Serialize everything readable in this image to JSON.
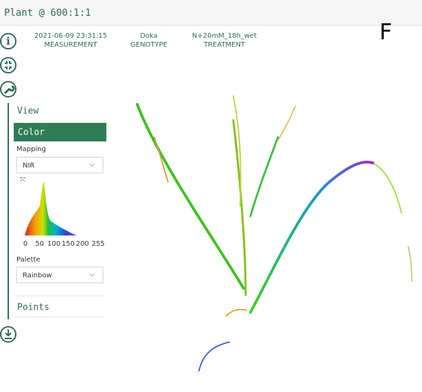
{
  "header": {
    "title": "Plant @ 600:1:1",
    "panel_letter": "F"
  },
  "metadata": [
    {
      "value": "2021-06-09 23:31:15",
      "label": "MEASUREMENT"
    },
    {
      "value": "Doka",
      "label": "GENOTYPE"
    },
    {
      "value": "N+20mM_18h_wet",
      "label": "TREATMENT"
    }
  ],
  "sidebar": {
    "view": "View",
    "color": "Color",
    "mapping_label": "Mapping",
    "mapping_value": "NIR",
    "histogram": {
      "xlim": [
        0,
        255
      ],
      "xticks": [
        0,
        50,
        100,
        150,
        200,
        255
      ]
    },
    "palette_label": "Palette",
    "palette_value": "Rainbow",
    "points": "Points"
  }
}
